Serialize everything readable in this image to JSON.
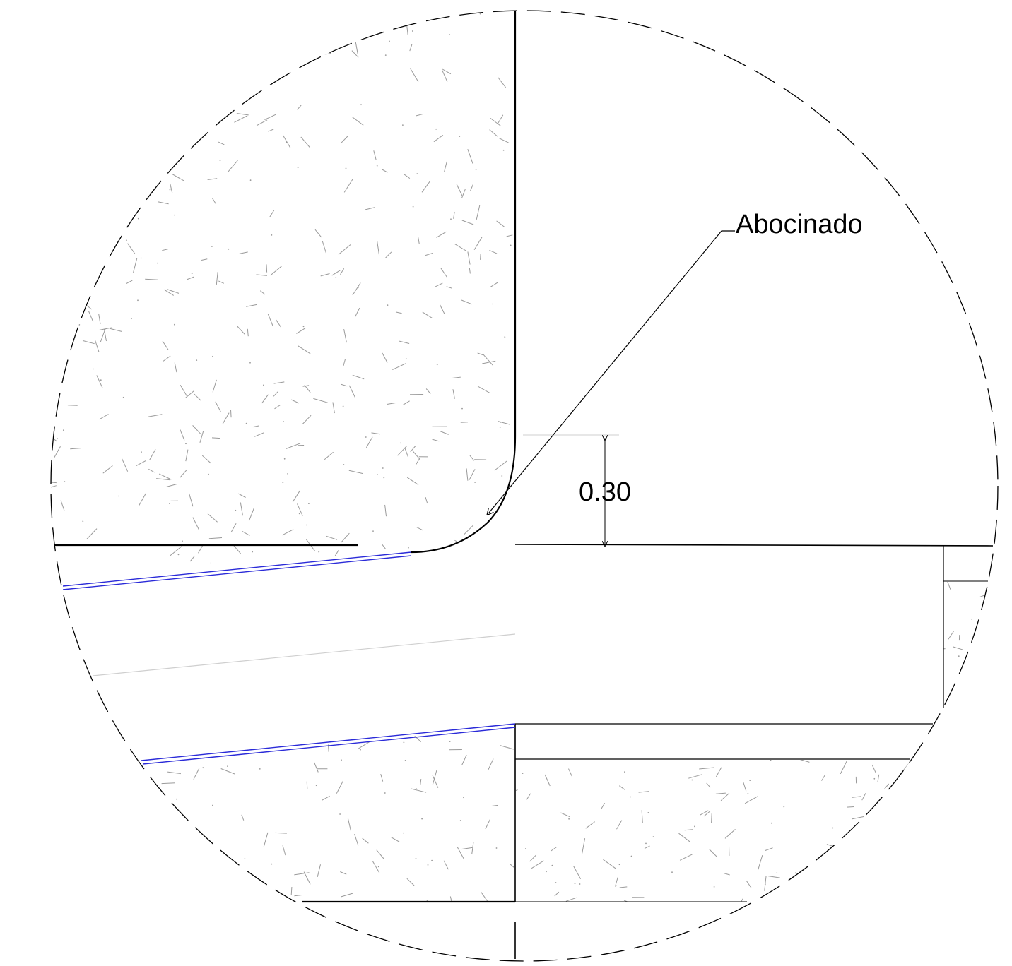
{
  "detail": {
    "label": "Abocinado",
    "dimension": "0.30"
  },
  "colors": {
    "line": "#000000",
    "waterproofing": "#2a2ad8",
    "hatch": "#9a9a9a",
    "faint": "#cfcfcf"
  },
  "icons": [
    "dimension-arrow-icon",
    "leader-arrow-icon",
    "concrete-hatch-icon"
  ]
}
